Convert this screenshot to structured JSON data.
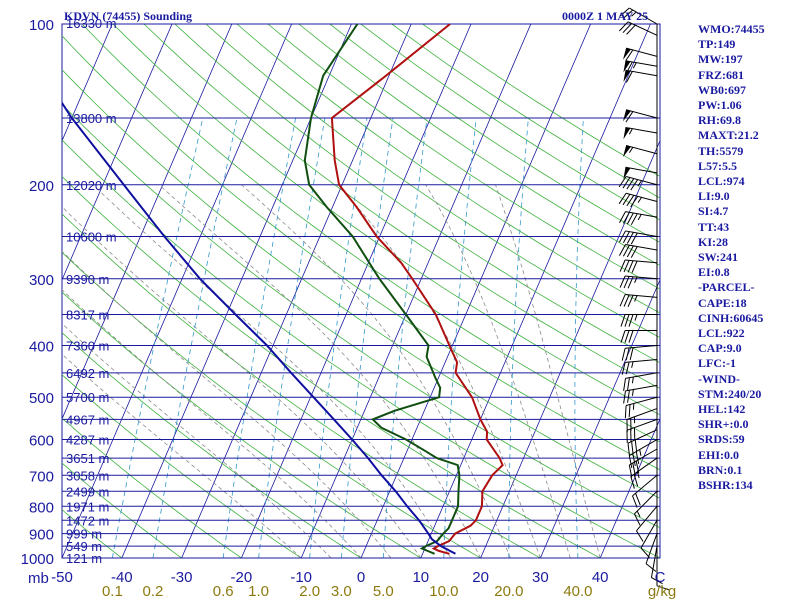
{
  "header": {
    "station": "KDVN (74455) Sounding",
    "time": "0000Z  1 MAY 25"
  },
  "indices": [
    "WMO:74455",
    "TP:149",
    "MW:197",
    "FRZ:681",
    "WB0:697",
    "PW:1.06",
    "RH:69.8",
    "MAXT:21.2",
    "TH:5579",
    "L57:5.5",
    "LCL:974",
    "LI:9.0",
    "SI:4.7",
    "TT:43",
    "KI:28",
    "SW:241",
    "EI:0.8",
    "-PARCEL-",
    "CAPE:18",
    "CINH:60645",
    "LCL:922",
    "CAP:9.0",
    "LFC:-1",
    "-WIND-",
    "STM:240/20",
    "HEL:142",
    "SHR+:0.0",
    "SRDS:59",
    "EHI:0.0",
    "BRN:0.1",
    "BSHR:134"
  ],
  "colors": {
    "temperature": "#b01010",
    "dewpoint": "#104f10",
    "parcel": "#1010a0",
    "isobar": "#1a1aa0",
    "isotherm": "#1a1aa0",
    "dry_adiabat": "#3fb23f",
    "moist_adiabat": "#8c8c8c",
    "mixing_ratio": "#3399cc",
    "label": "#1a1aa0",
    "mixing_label": "#8c7a10",
    "wind": "#000000"
  },
  "chart_data": {
    "type": "skew-t",
    "x_unit": "°C",
    "y_unit": "mb",
    "y_scale": "log",
    "ylim": [
      1000,
      100
    ],
    "xlim": [
      -50,
      50
    ],
    "x_ticks": [
      -50,
      -40,
      -30,
      -20,
      -10,
      0,
      10,
      20,
      30,
      40,
      50
    ],
    "x_tick_labels": [
      "-50",
      "-40",
      "-30",
      "-20",
      "-10",
      "0",
      "10",
      "20",
      "30",
      "40",
      "C"
    ],
    "y_axis_unit_label": "mb",
    "pressure_labels": [
      100,
      200,
      300,
      400,
      500,
      600,
      700,
      800,
      900,
      1000
    ],
    "height_levels": [
      {
        "p": 100,
        "h": "16330 m"
      },
      {
        "p": 150,
        "h": "13800 m"
      },
      {
        "p": 200,
        "h": "12020 m"
      },
      {
        "p": 250,
        "h": "10600 m"
      },
      {
        "p": 300,
        "h": "9390 m"
      },
      {
        "p": 350,
        "h": "8317 m"
      },
      {
        "p": 400,
        "h": "7360 m"
      },
      {
        "p": 450,
        "h": "6492 m"
      },
      {
        "p": 500,
        "h": "5700 m"
      },
      {
        "p": 550,
        "h": "4967 m"
      },
      {
        "p": 600,
        "h": "4287 m"
      },
      {
        "p": 650,
        "h": "3651 m"
      },
      {
        "p": 700,
        "h": "3058 m"
      },
      {
        "p": 750,
        "h": "2499 m"
      },
      {
        "p": 800,
        "h": "1971 m"
      },
      {
        "p": 850,
        "h": "1472 m"
      },
      {
        "p": 900,
        "h": "999 m"
      },
      {
        "p": 950,
        "h": "549 m"
      },
      {
        "p": 1000,
        "h": "121 m"
      }
    ],
    "mixing_ratio_labels": [
      {
        "w": 0.1,
        "label": "0.1"
      },
      {
        "w": 0.2,
        "label": "0.2"
      },
      {
        "w": 0.6,
        "label": "0.6"
      },
      {
        "w": 1.0,
        "label": "1.0"
      },
      {
        "w": 2.0,
        "label": "2.0"
      },
      {
        "w": 3.0,
        "label": "3.0"
      },
      {
        "w": 5.0,
        "label": "5.0"
      },
      {
        "w": 10.0,
        "label": "10.0"
      },
      {
        "w": 20.0,
        "label": "20.0"
      },
      {
        "w": 40.0,
        "label": "40.0"
      }
    ],
    "mixing_ratio_unit": "g/kg",
    "series": [
      {
        "key": "temperature",
        "points": [
          [
            982,
            14.5
          ],
          [
            970,
            12.5
          ],
          [
            960,
            11.5
          ],
          [
            950,
            12.0
          ],
          [
            930,
            13.5
          ],
          [
            900,
            14.0
          ],
          [
            870,
            16.0
          ],
          [
            850,
            16.5
          ],
          [
            800,
            16.5
          ],
          [
            750,
            15.5
          ],
          [
            700,
            16.0
          ],
          [
            670,
            17.0
          ],
          [
            650,
            16.0
          ],
          [
            600,
            12.5
          ],
          [
            580,
            12.0
          ],
          [
            550,
            10.0
          ],
          [
            500,
            7.0
          ],
          [
            450,
            2.5
          ],
          [
            430,
            2.0
          ],
          [
            400,
            -0.5
          ],
          [
            350,
            -5.0
          ],
          [
            300,
            -11.5
          ],
          [
            280,
            -14.5
          ],
          [
            250,
            -20.5
          ],
          [
            220,
            -26.0
          ],
          [
            200,
            -30.5
          ],
          [
            180,
            -33.0
          ],
          [
            150,
            -36.5
          ],
          [
            125,
            -30.5
          ],
          [
            100,
            -23.5
          ]
        ]
      },
      {
        "key": "dewpoint",
        "points": [
          [
            982,
            12.0
          ],
          [
            960,
            9.5
          ],
          [
            950,
            10.0
          ],
          [
            930,
            11.5
          ],
          [
            900,
            12.0
          ],
          [
            880,
            12.5
          ],
          [
            850,
            12.5
          ],
          [
            800,
            12.5
          ],
          [
            750,
            11.5
          ],
          [
            700,
            10.5
          ],
          [
            670,
            9.5
          ],
          [
            650,
            5.5
          ],
          [
            630,
            3.0
          ],
          [
            600,
            -1.0
          ],
          [
            570,
            -6.0
          ],
          [
            550,
            -8.0
          ],
          [
            530,
            -5.0
          ],
          [
            500,
            1.5
          ],
          [
            480,
            1.0
          ],
          [
            460,
            -0.5
          ],
          [
            420,
            -3.5
          ],
          [
            400,
            -4.0
          ],
          [
            350,
            -10.0
          ],
          [
            300,
            -17.0
          ],
          [
            250,
            -24.5
          ],
          [
            220,
            -31.0
          ],
          [
            200,
            -35.5
          ],
          [
            180,
            -38.0
          ],
          [
            150,
            -40.0
          ],
          [
            125,
            -41.0
          ],
          [
            100,
            -39.0
          ]
        ]
      },
      {
        "key": "parcel",
        "points": [
          [
            982,
            15.5
          ],
          [
            950,
            12.5
          ],
          [
            922,
            10.5
          ],
          [
            900,
            9.5
          ],
          [
            850,
            7.0
          ],
          [
            800,
            4.0
          ],
          [
            750,
            1.0
          ],
          [
            700,
            -2.5
          ],
          [
            650,
            -6.0
          ],
          [
            600,
            -10.0
          ],
          [
            550,
            -14.5
          ],
          [
            500,
            -19.5
          ],
          [
            450,
            -25.0
          ],
          [
            400,
            -31.0
          ],
          [
            350,
            -38.5
          ],
          [
            300,
            -47.0
          ],
          [
            250,
            -56.0
          ],
          [
            200,
            -66.5
          ],
          [
            150,
            -80.0
          ],
          [
            130,
            -86.0
          ]
        ]
      }
    ],
    "wind_barbs": [
      {
        "p": 100,
        "dir": 300,
        "spd": 25
      },
      {
        "p": 105,
        "dir": 295,
        "spd": 30
      },
      {
        "p": 115,
        "dir": 285,
        "spd": 60
      },
      {
        "p": 120,
        "dir": 280,
        "spd": 65
      },
      {
        "p": 125,
        "dir": 280,
        "spd": 60
      },
      {
        "p": 150,
        "dir": 285,
        "spd": 60
      },
      {
        "p": 160,
        "dir": 280,
        "spd": 55
      },
      {
        "p": 175,
        "dir": 285,
        "spd": 55
      },
      {
        "p": 190,
        "dir": 280,
        "spd": 50
      },
      {
        "p": 200,
        "dir": 285,
        "spd": 45
      },
      {
        "p": 215,
        "dir": 285,
        "spd": 45
      },
      {
        "p": 230,
        "dir": 280,
        "spd": 45
      },
      {
        "p": 250,
        "dir": 280,
        "spd": 40
      },
      {
        "p": 265,
        "dir": 280,
        "spd": 40
      },
      {
        "p": 280,
        "dir": 275,
        "spd": 40
      },
      {
        "p": 300,
        "dir": 275,
        "spd": 35
      },
      {
        "p": 325,
        "dir": 275,
        "spd": 35
      },
      {
        "p": 350,
        "dir": 270,
        "spd": 35
      },
      {
        "p": 375,
        "dir": 270,
        "spd": 30
      },
      {
        "p": 400,
        "dir": 265,
        "spd": 30
      },
      {
        "p": 425,
        "dir": 265,
        "spd": 25
      },
      {
        "p": 450,
        "dir": 260,
        "spd": 25
      },
      {
        "p": 475,
        "dir": 260,
        "spd": 25
      },
      {
        "p": 500,
        "dir": 255,
        "spd": 25
      },
      {
        "p": 525,
        "dir": 250,
        "spd": 25
      },
      {
        "p": 550,
        "dir": 250,
        "spd": 30
      },
      {
        "p": 575,
        "dir": 245,
        "spd": 30
      },
      {
        "p": 600,
        "dir": 240,
        "spd": 35
      },
      {
        "p": 625,
        "dir": 240,
        "spd": 30
      },
      {
        "p": 650,
        "dir": 235,
        "spd": 25
      },
      {
        "p": 700,
        "dir": 230,
        "spd": 20
      },
      {
        "p": 750,
        "dir": 225,
        "spd": 15
      },
      {
        "p": 800,
        "dir": 220,
        "spd": 10
      },
      {
        "p": 850,
        "dir": 210,
        "spd": 10
      },
      {
        "p": 900,
        "dir": 200,
        "spd": 10
      },
      {
        "p": 950,
        "dir": 190,
        "spd": 10
      },
      {
        "p": 982,
        "dir": 180,
        "spd": 10
      }
    ]
  }
}
